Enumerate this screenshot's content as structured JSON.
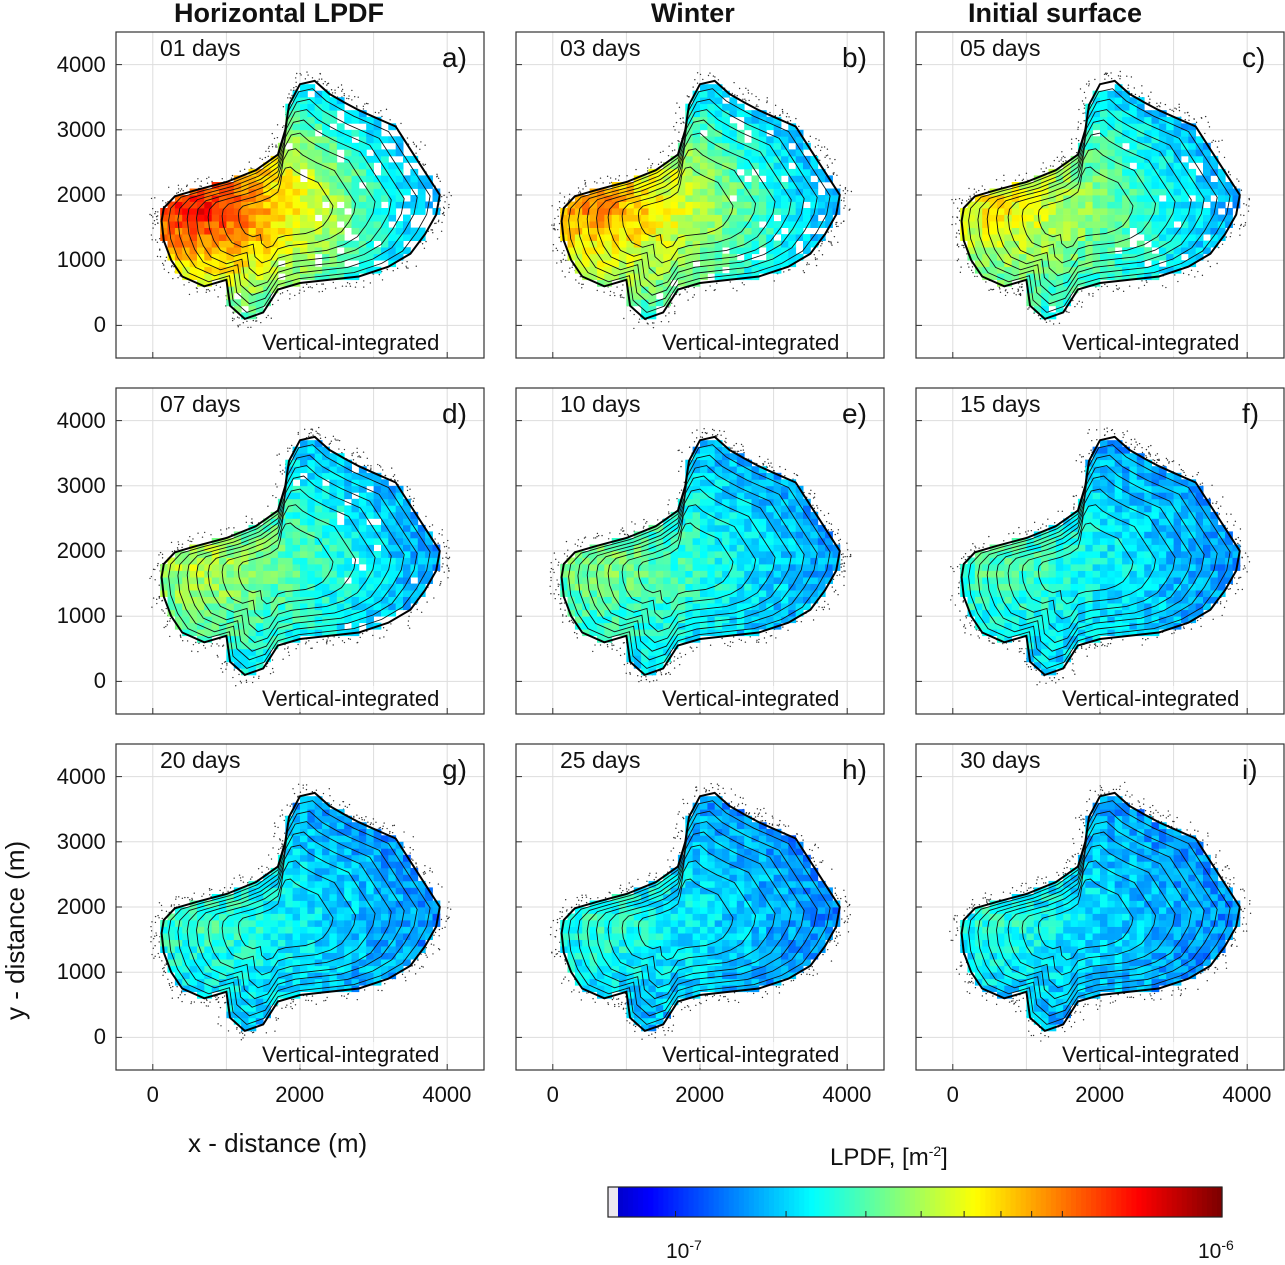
{
  "column_titles": [
    "Horizontal LPDF",
    "Winter",
    "Initial surface"
  ],
  "chart_data": {
    "type": "heatmap",
    "xlabel": "x - distance (m)",
    "ylabel": "y - distance (m)",
    "x_ticks": [
      "0",
      "2000",
      "4000"
    ],
    "y_ticks": [
      "0",
      "1000",
      "2000",
      "3000",
      "4000"
    ],
    "xlim": [
      -500,
      4500
    ],
    "ylim": [
      -500,
      4500
    ],
    "grid": true,
    "panels": [
      {
        "letter": "a)",
        "days": "01 days",
        "note": "Vertical-integrated",
        "spread": 0.55,
        "level": 0.75
      },
      {
        "letter": "b)",
        "days": "03 days",
        "note": "Vertical-integrated",
        "spread": 0.62,
        "level": 0.62
      },
      {
        "letter": "c)",
        "days": "05 days",
        "note": "Vertical-integrated",
        "spread": 0.7,
        "level": 0.52
      },
      {
        "letter": "d)",
        "days": "07 days",
        "note": "Vertical-integrated",
        "spread": 0.76,
        "level": 0.44
      },
      {
        "letter": "e)",
        "days": "10 days",
        "note": "Vertical-integrated",
        "spread": 0.85,
        "level": 0.38
      },
      {
        "letter": "f)",
        "days": "15 days",
        "note": "Vertical-integrated",
        "spread": 0.9,
        "level": 0.33
      },
      {
        "letter": "g)",
        "days": "20 days",
        "note": "Vertical-integrated",
        "spread": 0.94,
        "level": 0.31
      },
      {
        "letter": "h)",
        "days": "25 days",
        "note": "Vertical-integrated",
        "spread": 0.96,
        "level": 0.29
      },
      {
        "letter": "i)",
        "days": "30 days",
        "note": "Vertical-integrated",
        "spread": 0.97,
        "level": 0.28
      }
    ],
    "colorbar": {
      "label_base": "LPDF, [m",
      "label_exp": "-2",
      "label_end": "]",
      "scale": "log",
      "ticks": [
        {
          "base": "10",
          "exp": "-7"
        },
        {
          "base": "10",
          "exp": "-6"
        }
      ],
      "colormap": "jet"
    }
  }
}
